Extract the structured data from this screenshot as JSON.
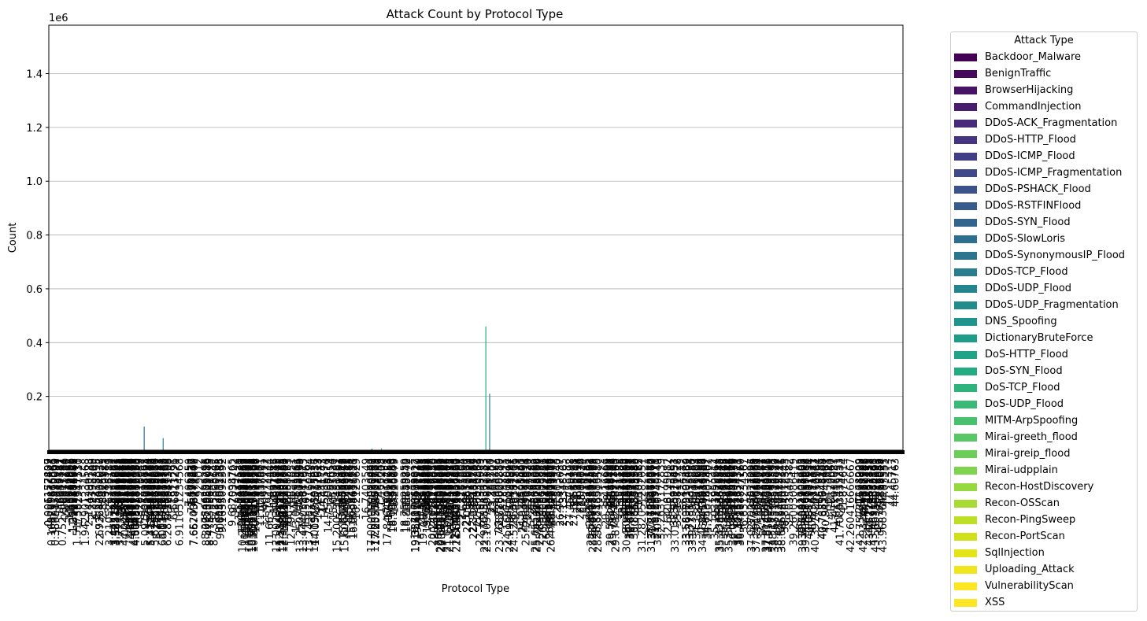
{
  "chart_data": {
    "type": "bar",
    "stacked": true,
    "title": "Attack Count by Protocol Type",
    "xlabel": "Protocol Type",
    "ylabel": "Count",
    "y_offset_label": "1e6",
    "ylim": [
      0,
      1580000
    ],
    "yticks": [
      0.2,
      0.4,
      0.6,
      0.8,
      1.0,
      1.2,
      1.4
    ],
    "grid": "y",
    "legend": {
      "title": "Attack Type",
      "placement": "outside-right"
    },
    "series": [
      {
        "name": "Backdoor_Malware",
        "color": "#440154"
      },
      {
        "name": "BenignTraffic",
        "color": "#46085c"
      },
      {
        "name": "BrowserHijacking",
        "color": "#471365"
      },
      {
        "name": "CommandInjection",
        "color": "#471e6e"
      },
      {
        "name": "DDoS-ACK_Fragmentation",
        "color": "#472a7a"
      },
      {
        "name": "DDoS-HTTP_Flood",
        "color": "#453480"
      },
      {
        "name": "DDoS-ICMP_Flood",
        "color": "#423e85"
      },
      {
        "name": "DDoS-ICMP_Fragmentation",
        "color": "#3e4989"
      },
      {
        "name": "DDoS-PSHACK_Flood",
        "color": "#3b528b"
      },
      {
        "name": "DDoS-RSTFINFlood",
        "color": "#365b8c"
      },
      {
        "name": "DDoS-SYN_Flood",
        "color": "#32658e"
      },
      {
        "name": "DDoS-SlowLoris",
        "color": "#2e6e8e"
      },
      {
        "name": "DDoS-SynonymousIP_Flood",
        "color": "#2b758e"
      },
      {
        "name": "DDoS-TCP_Flood",
        "color": "#287d8e"
      },
      {
        "name": "DDoS-UDP_Flood",
        "color": "#25858e"
      },
      {
        "name": "DDoS-UDP_Fragmentation",
        "color": "#228c8d"
      },
      {
        "name": "DNS_Spoofing",
        "color": "#1f948c"
      },
      {
        "name": "DictionaryBruteForce",
        "color": "#1e9c89"
      },
      {
        "name": "DoS-HTTP_Flood",
        "color": "#20a386"
      },
      {
        "name": "DoS-SYN_Flood",
        "color": "#25ab82"
      },
      {
        "name": "DoS-TCP_Flood",
        "color": "#2eb37c"
      },
      {
        "name": "DoS-UDP_Flood",
        "color": "#3aba76"
      },
      {
        "name": "MITM-ArpSpoofing",
        "color": "#48c16e"
      },
      {
        "name": "Mirai-greeth_flood",
        "color": "#58c765"
      },
      {
        "name": "Mirai-greip_flood",
        "color": "#6ccd5a"
      },
      {
        "name": "Mirai-udpplain",
        "color": "#7ed34f"
      },
      {
        "name": "Recon-HostDiscovery",
        "color": "#95d840"
      },
      {
        "name": "Recon-OSScan",
        "color": "#a8db34"
      },
      {
        "name": "Recon-PingSweep",
        "color": "#bddf26"
      },
      {
        "name": "Recon-PortScan",
        "color": "#d0e11c"
      },
      {
        "name": "SqlInjection",
        "color": "#e5e419"
      },
      {
        "name": "Uploading_Attack",
        "color": "#f1e51d"
      },
      {
        "name": "VulnerabilityScan",
        "color": "#fde725"
      },
      {
        "name": "XSS",
        "color": "#fde725"
      }
    ],
    "bars": [
      {
        "x": 5.0,
        "value": 88000,
        "color": "#2e6e8e"
      },
      {
        "x": 6.0,
        "value": 45000,
        "color": "#25858e"
      },
      {
        "x": 17.0,
        "value": 6000,
        "color": "#25858e"
      },
      {
        "x": 17.5,
        "value": 7000,
        "color": "#2eb37c"
      },
      {
        "x": 23.0,
        "value": 460000,
        "color": "#25ab82"
      },
      {
        "x": 23.2,
        "value": 210000,
        "color": "#287d8e"
      }
    ],
    "visible_x_tick_labels": [
      "3.210526315789",
      "3.777777777777",
      "5.091836734693",
      "10.696629213483",
      "22.970833333333",
      "31.282051282051",
      "31.777777777777",
      "34.463414634146",
      "35.333333333333",
      "35.847826086956",
      "37.027027027027",
      "37.956521739130",
      "38.472222222222",
      "39.736842105263",
      "40.397727272727"
    ]
  }
}
